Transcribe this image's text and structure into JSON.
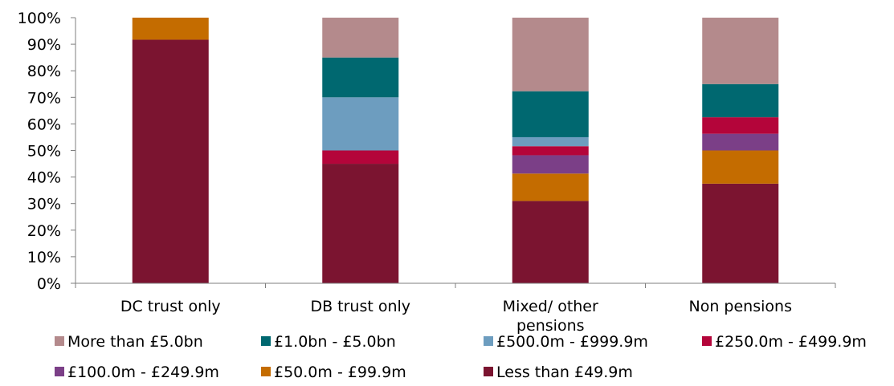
{
  "chart_data": {
    "type": "bar",
    "stacked": true,
    "categories": [
      "DC trust only",
      "DB trust only",
      "Mixed/ other pensions",
      "Non pensions"
    ],
    "category_lines": [
      [
        "DC trust only"
      ],
      [
        "DB trust only"
      ],
      [
        "Mixed/ other",
        "pensions"
      ],
      [
        "Non pensions"
      ]
    ],
    "ylim": [
      0,
      100
    ],
    "y_ticks": [
      0,
      10,
      20,
      30,
      40,
      50,
      60,
      70,
      80,
      90,
      100
    ],
    "y_tick_labels": [
      "0%",
      "10%",
      "20%",
      "30%",
      "40%",
      "50%",
      "60%",
      "70%",
      "80%",
      "90%",
      "100%"
    ],
    "grid": false,
    "legend_position": "bottom",
    "series": [
      {
        "name": "Less than £49.9m",
        "color": "#7b1430",
        "values": [
          91.7,
          45.0,
          31.0,
          37.5
        ]
      },
      {
        "name": "£50.0m - £99.9m",
        "color": "#c46c00",
        "values": [
          8.3,
          0.0,
          10.3,
          12.5
        ]
      },
      {
        "name": "£100.0m - £249.9m",
        "color": "#7b3f87",
        "values": [
          0.0,
          0.0,
          6.9,
          6.3
        ]
      },
      {
        "name": "£250.0m - £499.9m",
        "color": "#b4053a",
        "values": [
          0.0,
          5.0,
          3.4,
          6.2
        ]
      },
      {
        "name": "£500.0m - £999.9m",
        "color": "#6d9dbf",
        "values": [
          0.0,
          20.0,
          3.4,
          0.0
        ]
      },
      {
        "name": "£1.0bn - £5.0bn",
        "color": "#006870",
        "values": [
          0.0,
          15.0,
          17.3,
          12.5
        ]
      },
      {
        "name": "More than £5.0bn",
        "color": "#b48a8c",
        "values": [
          0.0,
          15.0,
          27.7,
          25.0
        ]
      }
    ],
    "legend_rows": [
      [
        "More than £5.0bn",
        "£1.0bn - £5.0bn",
        "£500.0m - £999.9m",
        "£250.0m - £499.9m"
      ],
      [
        "£100.0m - £249.9m",
        "£50.0m - £99.9m",
        "Less than £49.9m"
      ]
    ]
  }
}
